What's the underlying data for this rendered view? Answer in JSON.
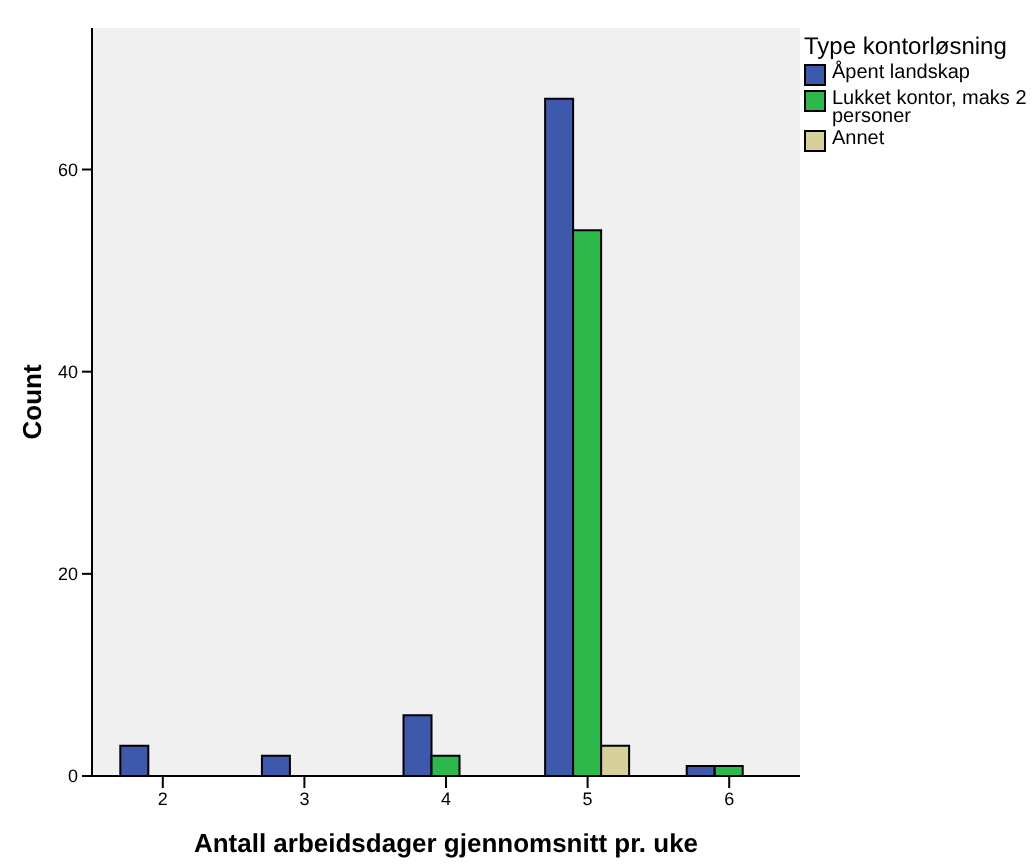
{
  "chart_data": {
    "type": "bar",
    "xlabel": "Antall arbeidsdager gjennomsnitt pr. uke",
    "ylabel": "Count",
    "legend_title": "Type kontorløsning",
    "categories": [
      "2",
      "3",
      "4",
      "5",
      "6"
    ],
    "series": [
      {
        "name": "Åpent landskap",
        "color": "#3e58ac",
        "values": [
          3,
          2,
          6,
          67,
          1
        ]
      },
      {
        "name": "Lukket kontor, maks 2 personer",
        "color": "#2db84b",
        "values": [
          null,
          null,
          2,
          54,
          1
        ]
      },
      {
        "name": "Annet",
        "color": "#d6d19a",
        "values": [
          null,
          null,
          null,
          3,
          null
        ]
      }
    ],
    "ylim": [
      0,
      74
    ],
    "yticks": [
      0,
      20,
      40,
      60
    ],
    "grid": false,
    "legend": "top right"
  }
}
